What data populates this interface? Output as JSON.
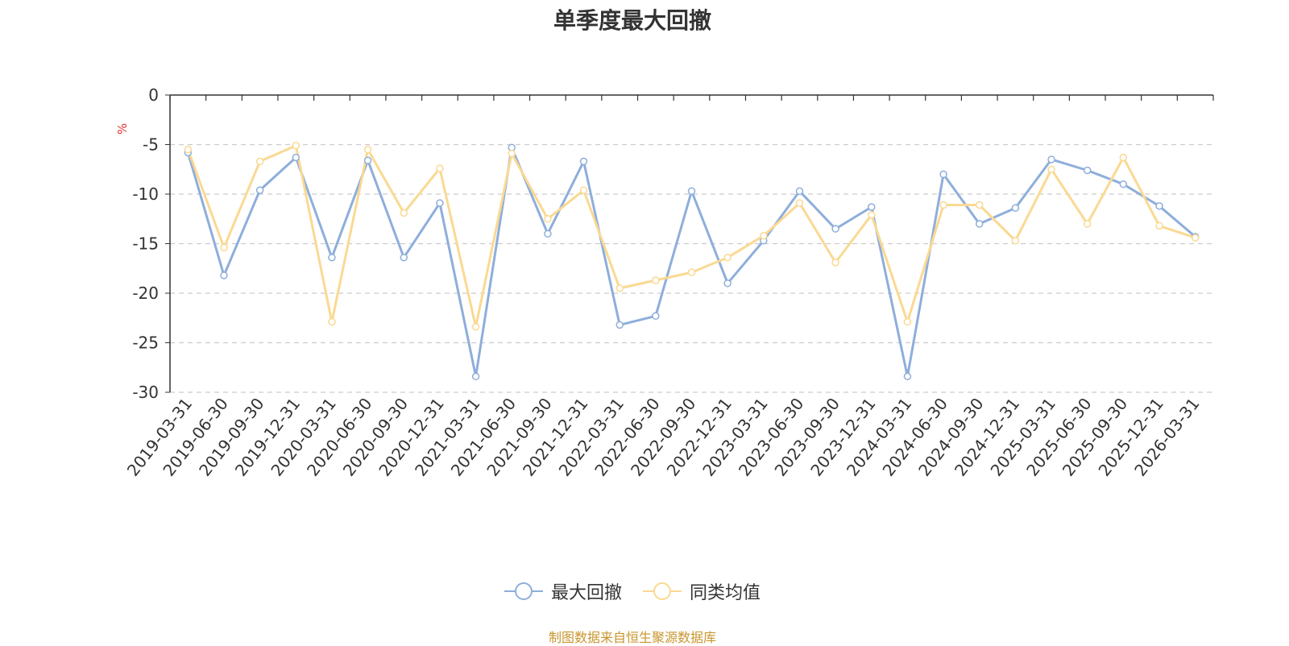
{
  "chart_data": {
    "type": "line",
    "title": "单季度最大回撤",
    "ylabel": "%",
    "xlabel": "",
    "ylim": [
      -30,
      0
    ],
    "yticks": [
      0,
      -5,
      -10,
      -15,
      -20,
      -25,
      -30
    ],
    "grid": true,
    "legend_position": "bottom",
    "categories": [
      "2019-03-31",
      "2019-06-30",
      "2019-09-30",
      "2019-12-31",
      "2020-03-31",
      "2020-06-30",
      "2020-09-30",
      "2020-12-31",
      "2021-03-31",
      "2021-06-30",
      "2021-09-30",
      "2021-12-31",
      "2022-03-31",
      "2022-06-30",
      "2022-09-30",
      "2022-12-31",
      "2023-03-31",
      "2023-06-30",
      "2023-09-30",
      "2023-12-31",
      "2024-03-31",
      "2024-06-30",
      "2024-09-30",
      "2024-12-31",
      "2025-03-31",
      "2025-06-30",
      "2025-09-30",
      "2025-12-31",
      "2026-03-31"
    ],
    "series": [
      {
        "name": "最大回撤",
        "color": "#8eaedb",
        "values": [
          -5.8,
          -18.2,
          -9.6,
          -6.3,
          -16.4,
          -6.6,
          -16.4,
          -10.9,
          -28.4,
          -5.3,
          -14.0,
          -6.7,
          -23.2,
          -22.3,
          -9.7,
          -19.0,
          -14.7,
          -9.7,
          -13.5,
          -11.3,
          -28.4,
          -8.0,
          -13.0,
          -11.4,
          -6.5,
          -7.6,
          -9.0,
          -11.2,
          -14.3
        ]
      },
      {
        "name": "同类均值",
        "color": "#fad992",
        "values": [
          -5.5,
          -15.4,
          -6.7,
          -5.1,
          -22.9,
          -5.5,
          -11.9,
          -7.4,
          -23.4,
          -5.9,
          -12.5,
          -9.6,
          -19.5,
          -18.7,
          -17.9,
          -16.4,
          -14.2,
          -10.9,
          -16.9,
          -12.1,
          -22.9,
          -11.1,
          -11.1,
          -14.7,
          -7.5,
          -13.0,
          -6.3,
          -13.2,
          -14.4
        ]
      }
    ]
  },
  "footer": {
    "source": "制图数据来自恒生聚源数据库",
    "source_color": "#c8962e"
  }
}
